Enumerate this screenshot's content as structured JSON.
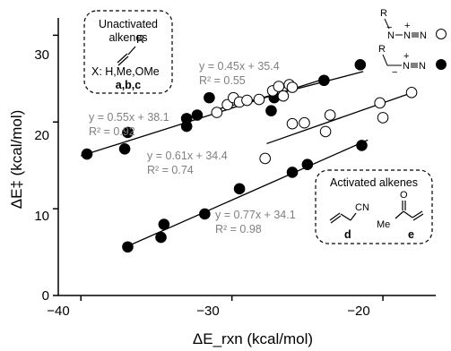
{
  "chart_data": {
    "type": "scatter",
    "xlabel": "ΔE_rxn (kcal/mol)",
    "ylabel": "ΔE‡ (kcal/mol)",
    "xlim": [
      -41.5,
      -16.5
    ],
    "ylim": [
      0,
      32
    ],
    "x_ticks": [
      "−40",
      "−30",
      "−20"
    ],
    "y_ticks": [
      "0",
      "10",
      "20",
      "30"
    ],
    "grid": false,
    "series": [
      {
        "marker": "filled",
        "points": [
          [
            -39.6,
            16.3
          ],
          [
            -37.1,
            16.9
          ],
          [
            -36.9,
            18.8
          ],
          [
            -33.0,
            19.5
          ],
          [
            -33.0,
            20.4
          ],
          [
            -32.3,
            20.8
          ],
          [
            -31.5,
            22.8
          ],
          [
            -27.4,
            21.3
          ],
          [
            -27.2,
            22.8
          ],
          [
            -23.9,
            24.8
          ],
          [
            -21.5,
            26.6
          ],
          [
            -36.9,
            5.6
          ],
          [
            -34.7,
            6.7
          ],
          [
            -34.5,
            8.2
          ],
          [
            -31.8,
            9.4
          ],
          [
            -29.5,
            12.3
          ],
          [
            -26.0,
            14.2
          ],
          [
            -25.0,
            15.1
          ],
          [
            -21.4,
            17.3
          ]
        ]
      },
      {
        "marker": "open",
        "points": [
          [
            -31.0,
            21.1
          ],
          [
            -30.3,
            22.0
          ],
          [
            -29.9,
            22.8
          ],
          [
            -29.5,
            22.3
          ],
          [
            -29.0,
            22.5
          ],
          [
            -28.2,
            22.6
          ],
          [
            -27.3,
            23.6
          ],
          [
            -26.9,
            24.1
          ],
          [
            -26.6,
            23.0
          ],
          [
            -26.2,
            24.3
          ],
          [
            -26.0,
            24.0
          ],
          [
            -27.8,
            15.8
          ],
          [
            -26.0,
            19.8
          ],
          [
            -25.2,
            19.9
          ],
          [
            -23.8,
            18.9
          ],
          [
            -23.5,
            20.8
          ],
          [
            -20.2,
            22.2
          ],
          [
            -20.0,
            20.5
          ],
          [
            -18.1,
            23.4
          ]
        ]
      }
    ],
    "fit_lines": [
      {
        "slope": 0.45,
        "intercept": 35.4,
        "x_range": [
          -31.3,
          -21.3
        ]
      },
      {
        "slope": 0.55,
        "intercept": 38.1,
        "x_range": [
          -40.0,
          -24.0
        ]
      },
      {
        "slope": 0.61,
        "intercept": 34.4,
        "x_range": [
          -27.7,
          -18.3
        ]
      },
      {
        "slope": 0.77,
        "intercept": 34.1,
        "x_range": [
          -37.0,
          -21.0
        ]
      }
    ],
    "fit_annotations": [
      {
        "equation": "y = 0.45x + 35.4",
        "r2": "R² = 0.55"
      },
      {
        "equation": "y = 0.55x + 38.1",
        "r2": "R² = 0.92"
      },
      {
        "equation": "y = 0.61x + 34.4",
        "r2": "R² = 0.74"
      },
      {
        "equation": "y = 0.77x + 34.1",
        "r2": "R² = 0.98"
      }
    ],
    "inset_unactivated": {
      "title_line1": "Unactivated",
      "title_line2": "alkenes",
      "substituent": "R",
      "x_label": "X: H,Me,OMe",
      "compound_labels": "a,b,c"
    },
    "inset_activated": {
      "title": "Activated alkenes",
      "cn_group": "CN",
      "ketone_o": "O",
      "ketone_me": "Me",
      "label_d": "d",
      "label_e": "e"
    },
    "legend_azide": {
      "r_label": "R",
      "n_label": "N",
      "n2_label": "N",
      "n3_label": "N",
      "plus_sign": "+",
      "minus_sign": "−"
    },
    "legend_diazo": {
      "r_label": "R",
      "n2_label": "N",
      "n3_label": "N",
      "plus_sign": "+",
      "minus_sign": "−"
    }
  }
}
